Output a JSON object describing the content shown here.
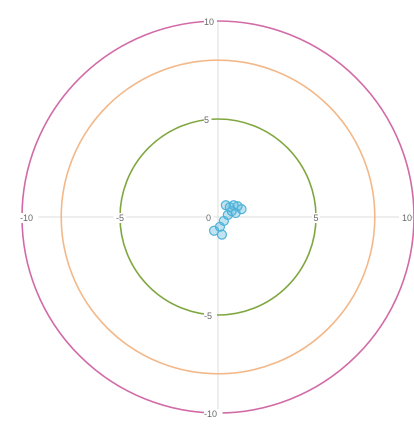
{
  "chart_data": {
    "type": "scatter",
    "title": "",
    "xlabel": "",
    "ylabel": "",
    "xlim": [
      -10,
      10
    ],
    "ylim": [
      -10,
      10
    ],
    "grid": false,
    "x_ticks": [
      {
        "value": -10,
        "label": "-10"
      },
      {
        "value": -5,
        "label": "-5"
      },
      {
        "value": 5,
        "label": "5"
      },
      {
        "value": 10,
        "label": "10"
      }
    ],
    "y_ticks": [
      {
        "value": 10,
        "label": "10"
      },
      {
        "value": 5,
        "label": "5"
      },
      {
        "value": -5,
        "label": "-5"
      },
      {
        "value": -10,
        "label": "-10"
      }
    ],
    "origin_label": "0",
    "axis_color": "#dddddd",
    "circles": [
      {
        "radius": 10,
        "color": "#d16aa6"
      },
      {
        "radius": 8,
        "color": "#f3b889"
      },
      {
        "radius": 5,
        "color": "#7fa63f"
      }
    ],
    "point_color": "#4fb3d9",
    "points": [
      {
        "x": 0.6,
        "y": 0.5
      },
      {
        "x": 0.8,
        "y": 0.6
      },
      {
        "x": 1.0,
        "y": 0.55
      },
      {
        "x": 0.7,
        "y": 0.3
      },
      {
        "x": 0.5,
        "y": 0.1
      },
      {
        "x": 1.2,
        "y": 0.4
      },
      {
        "x": 0.3,
        "y": -0.2
      },
      {
        "x": 0.1,
        "y": -0.5
      },
      {
        "x": -0.2,
        "y": -0.7
      },
      {
        "x": 0.2,
        "y": -0.9
      },
      {
        "x": 0.9,
        "y": 0.2
      },
      {
        "x": 0.4,
        "y": 0.6
      }
    ]
  }
}
